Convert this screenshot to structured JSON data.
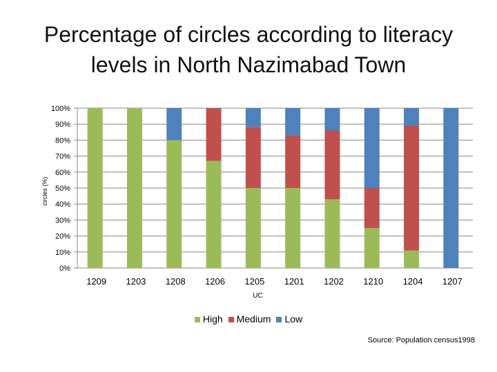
{
  "title_line1": "Percentage of circles according to literacy",
  "title_line2": "levels in North Nazimabad Town",
  "source": "Source: Population census1998",
  "colors": {
    "High": "#9bbb59",
    "Medium": "#c0504d",
    "Low": "#4f81bd"
  },
  "chart_data": {
    "type": "bar",
    "stacked": true,
    "title": "Percentage of circles according to literacy levels in North Nazimabad Town",
    "xlabel": "UC",
    "ylabel": "circles (%)",
    "ylim": [
      0,
      100
    ],
    "yticks": [
      "0%",
      "10%",
      "20%",
      "30%",
      "40%",
      "50%",
      "60%",
      "70%",
      "80%",
      "90%",
      "100%"
    ],
    "grid": true,
    "legend": "bottom",
    "categories": [
      "1209",
      "1203",
      "1208",
      "1206",
      "1205",
      "1201",
      "1202",
      "1210",
      "1204",
      "1207"
    ],
    "series": [
      {
        "name": "High",
        "values": [
          100,
          100,
          80,
          67,
          50,
          50,
          43,
          25,
          11,
          0
        ]
      },
      {
        "name": "Medium",
        "values": [
          0,
          0,
          0,
          33,
          38,
          33,
          43,
          25,
          78,
          0
        ]
      },
      {
        "name": "Low",
        "values": [
          0,
          0,
          20,
          0,
          12,
          17,
          14,
          50,
          11,
          100
        ]
      }
    ]
  }
}
